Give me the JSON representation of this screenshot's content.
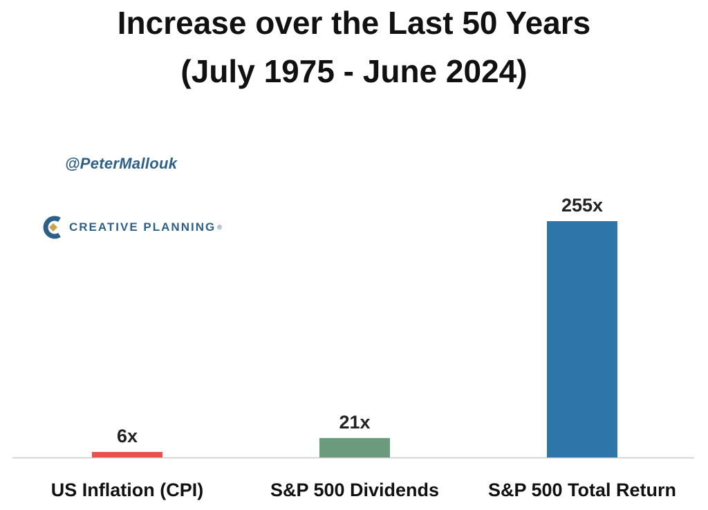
{
  "header": {
    "title_line1": "Increase over the Last 50 Years",
    "title_line2": "(July 1975 - June 2024)"
  },
  "branding": {
    "handle": "@PeterMallouk",
    "company": "CREATIVE PLANNING",
    "trademark": "®",
    "logo_icon": "creative-planning-logo-icon",
    "colors": {
      "logo_blue": "#2e5f86",
      "logo_gold": "#c9a24a"
    }
  },
  "chart_data": {
    "type": "bar",
    "categories": [
      "US Inflation (CPI)",
      "S&P 500 Dividends",
      "S&P 500 Total Return"
    ],
    "values": [
      6,
      21,
      255
    ],
    "value_labels": [
      "6x",
      "21x",
      "255x"
    ],
    "colors": [
      "#e8524a",
      "#6b9a7c",
      "#2e75aa"
    ],
    "title": "",
    "xlabel": "",
    "ylabel": "",
    "ylim": [
      0,
      255
    ],
    "grid": false,
    "legend": "none"
  }
}
